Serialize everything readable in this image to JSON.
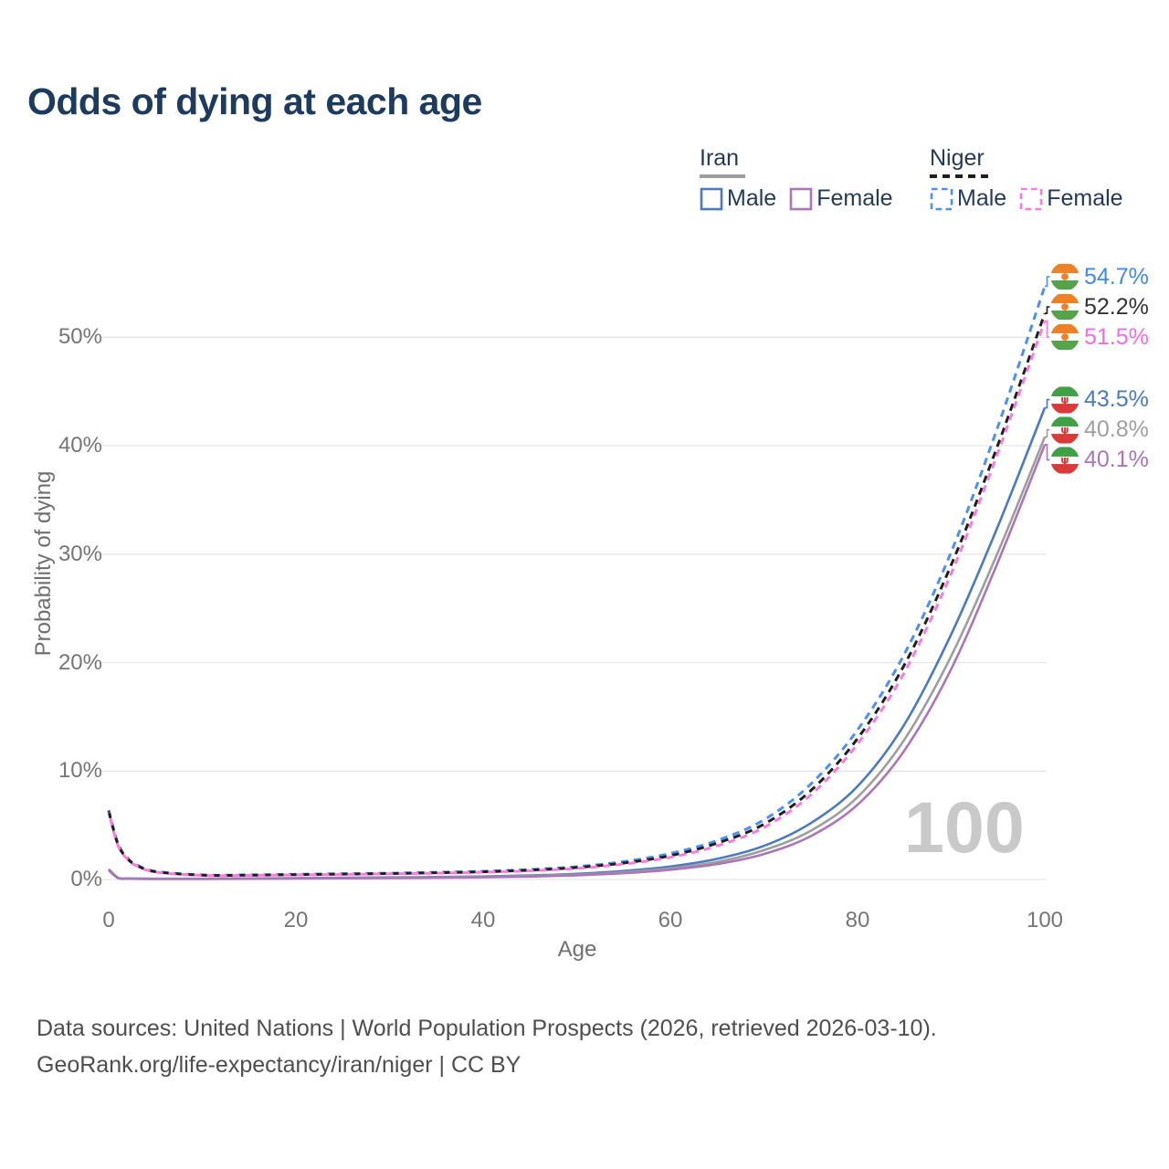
{
  "title": "Odds of dying at each age",
  "legend": {
    "iran": {
      "label": "Iran",
      "male_label": "Male",
      "female_label": "Female"
    },
    "niger": {
      "label": "Niger",
      "male_label": "Male",
      "female_label": "Female"
    }
  },
  "chart_data": {
    "type": "line",
    "title": "Odds of dying at each age",
    "xlabel": "Age",
    "ylabel": "Probability of dying",
    "xlim": [
      0,
      100
    ],
    "ylim": [
      0,
      55
    ],
    "x_ticks": [
      0,
      20,
      40,
      60,
      80,
      100
    ],
    "y_ticks": [
      "0%",
      "10%",
      "20%",
      "30%",
      "40%",
      "50%"
    ],
    "grid": "horizontal",
    "legend_position": "top-right",
    "watermark": "100",
    "x": [
      0,
      1,
      2,
      3,
      5,
      10,
      15,
      20,
      25,
      30,
      35,
      40,
      45,
      50,
      55,
      60,
      65,
      70,
      75,
      80,
      85,
      90,
      95,
      100
    ],
    "series": [
      {
        "name": "Niger Male",
        "country": "niger",
        "sex": "male",
        "color": "#4b90f2",
        "label_color": "#3d8af2",
        "dash": true,
        "end_label": "54.7%",
        "values": [
          6.4,
          3.3,
          2.0,
          1.35,
          0.75,
          0.42,
          0.42,
          0.48,
          0.53,
          0.58,
          0.66,
          0.76,
          0.92,
          1.18,
          1.65,
          2.4,
          3.6,
          5.5,
          8.8,
          13.8,
          20.8,
          30.2,
          41.8,
          54.7
        ]
      },
      {
        "name": "Niger Both sexes",
        "country": "niger",
        "sex": "both",
        "color": "#1f1f1f",
        "label_color": "#333333",
        "dash": true,
        "end_label": "52.2%",
        "values": [
          6.3,
          3.2,
          1.93,
          1.3,
          0.72,
          0.4,
          0.4,
          0.45,
          0.5,
          0.55,
          0.62,
          0.71,
          0.86,
          1.1,
          1.52,
          2.2,
          3.35,
          5.1,
          8.2,
          13.0,
          19.8,
          29.0,
          40.1,
          52.2
        ]
      },
      {
        "name": "Niger Female",
        "country": "niger",
        "sex": "female",
        "color": "#fb7ae1",
        "label_color": "#fb6ae0",
        "dash": true,
        "end_label": "51.5%",
        "values": [
          6.2,
          3.1,
          1.87,
          1.25,
          0.69,
          0.38,
          0.38,
          0.42,
          0.47,
          0.52,
          0.58,
          0.67,
          0.8,
          1.02,
          1.42,
          2.05,
          3.1,
          4.8,
          7.8,
          12.5,
          19.1,
          28.2,
          39.4,
          51.5
        ]
      },
      {
        "name": "Iran Male",
        "country": "iran",
        "sex": "male",
        "color": "#4a7ac0",
        "label_color": "#4a7ac0",
        "dash": false,
        "end_label": "43.5%",
        "values": [
          0.95,
          0.16,
          0.1,
          0.08,
          0.07,
          0.07,
          0.1,
          0.13,
          0.16,
          0.19,
          0.23,
          0.28,
          0.37,
          0.52,
          0.78,
          1.2,
          1.9,
          3.1,
          5.2,
          8.6,
          14.3,
          22.6,
          32.6,
          43.5
        ]
      },
      {
        "name": "Iran Both sexes",
        "country": "iran",
        "sex": "both",
        "color": "#9d9d9d",
        "label_color": "#a0a0a0",
        "dash": false,
        "end_label": "40.8%",
        "values": [
          0.9,
          0.14,
          0.09,
          0.07,
          0.06,
          0.06,
          0.09,
          0.11,
          0.13,
          0.16,
          0.19,
          0.24,
          0.32,
          0.45,
          0.67,
          1.03,
          1.62,
          2.7,
          4.5,
          7.6,
          12.9,
          20.6,
          30.2,
          40.8
        ]
      },
      {
        "name": "Iran Female",
        "country": "iran",
        "sex": "female",
        "color": "#ad74ba",
        "label_color": "#ad74ba",
        "dash": false,
        "end_label": "40.1%",
        "values": [
          0.85,
          0.13,
          0.08,
          0.06,
          0.05,
          0.05,
          0.07,
          0.09,
          0.11,
          0.13,
          0.16,
          0.2,
          0.27,
          0.39,
          0.58,
          0.9,
          1.42,
          2.35,
          4.0,
          6.9,
          11.9,
          19.4,
          29.3,
          40.1
        ]
      }
    ]
  },
  "flags": {
    "niger_orange": "#ee8125",
    "niger_green": "#55a34a",
    "iran_green": "#3fa046",
    "iran_red": "#d93a3a"
  },
  "footer": {
    "line1": "Data sources: United Nations | World Population Prospects (2026, retrieved 2026-03-10).",
    "line2": "GeoRank.org/life-expectancy/iran/niger | CC BY"
  }
}
